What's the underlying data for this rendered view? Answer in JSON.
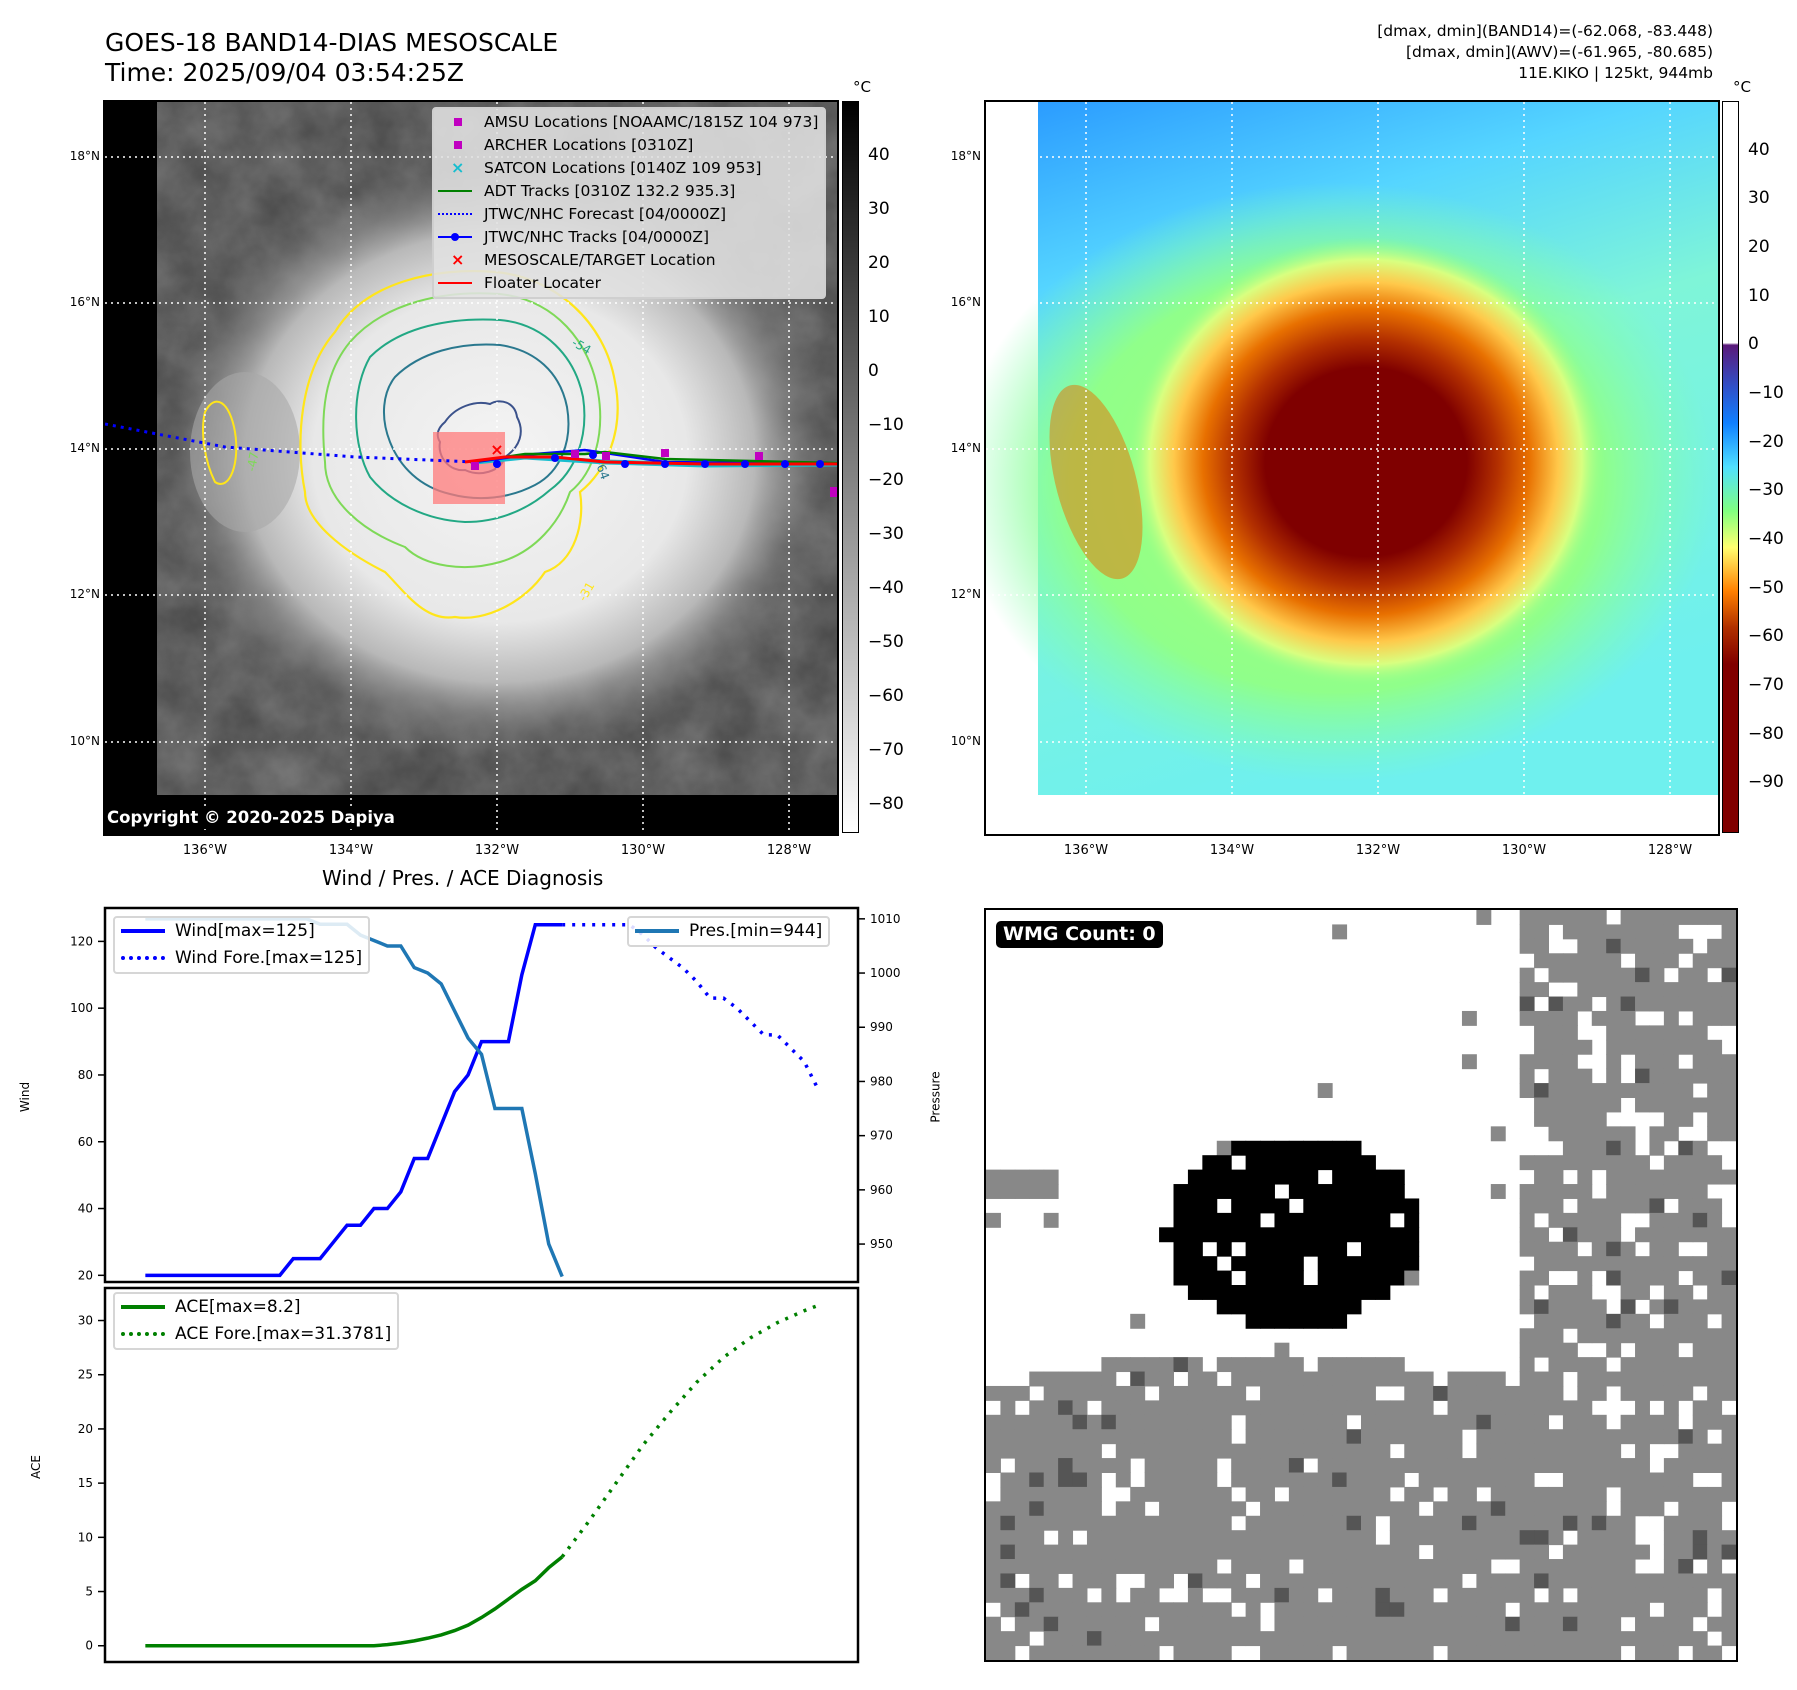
{
  "header": {
    "title": "GOES-18 BAND14-DIAS MESOSCALE",
    "time": "Time: 2025/09/04 03:54:25Z",
    "dmax_band14": "[dmax, dmin](BAND14)=(-62.068, -83.448)",
    "dmax_awv": "[dmax, dmin](AWV)=(-61.965, -80.685)",
    "storm": "11E.KIKO | 125kt, 944mb"
  },
  "maps": {
    "lat_labels": [
      "18°N",
      "16°N",
      "14°N",
      "12°N",
      "10°N"
    ],
    "lon_labels": [
      "136°W",
      "134°W",
      "132°W",
      "130°W",
      "128°W"
    ],
    "copyright": "Copyright © 2020-2025 Dapiya",
    "contour_labels": [
      "-54",
      "-64",
      "-31",
      "-47"
    ],
    "legend": [
      {
        "label": "AMSU Locations [NOAAMC/1815Z 104 973]",
        "symbol": "square",
        "color": "#c000c0"
      },
      {
        "label": "ARCHER Locations [0310Z]",
        "symbol": "square",
        "color": "#c000c0"
      },
      {
        "label": "SATCON Locations [0140Z 109 953]",
        "symbol": "x",
        "color": "#17becf"
      },
      {
        "label": "ADT Tracks [0310Z 132.2 935.3]",
        "symbol": "line",
        "color": "#008000"
      },
      {
        "label": "JTWC/NHC Forecast [04/0000Z]",
        "symbol": "dotted",
        "color": "#0000ff"
      },
      {
        "label": "JTWC/NHC Tracks [04/0000Z]",
        "symbol": "line-dot",
        "color": "#0000ff"
      },
      {
        "label": "MESOSCALE/TARGET Location",
        "symbol": "x",
        "color": "#ff0000"
      },
      {
        "label": "Floater Locater",
        "symbol": "line",
        "color": "#ff0000"
      }
    ],
    "gray_colorbar": {
      "unit": "°C",
      "ticks": [
        "40",
        "30",
        "20",
        "10",
        "0",
        "−10",
        "−20",
        "−30",
        "−40",
        "−50",
        "−60",
        "−70",
        "−80"
      ],
      "range": [
        -85,
        50
      ]
    },
    "color_colorbar": {
      "unit": "°C",
      "ticks": [
        "40",
        "30",
        "20",
        "10",
        "0",
        "−10",
        "−20",
        "−30",
        "−40",
        "−50",
        "−60",
        "−70",
        "−80",
        "−90"
      ],
      "range": [
        -100,
        50
      ]
    }
  },
  "wmg": {
    "label": "WMG Count: 0"
  },
  "chart_data": [
    {
      "type": "line",
      "title": "Wind / Pres. / ACE Diagnosis",
      "ylabel": "Wind",
      "ylabel_right": "Pressure",
      "ylim": [
        18,
        130
      ],
      "ylim_right": [
        943,
        1012
      ],
      "yticks": [
        "120",
        "100",
        "80",
        "60",
        "40",
        "20"
      ],
      "yticks_right": [
        "1010",
        "1000",
        "990",
        "980",
        "970",
        "960",
        "950"
      ],
      "x": [
        0,
        1,
        2,
        3,
        4,
        5,
        6,
        7,
        8,
        9,
        10,
        11,
        12,
        13,
        14,
        15,
        16,
        17,
        18,
        19,
        20,
        21,
        22,
        23,
        24,
        25,
        26,
        27,
        28,
        29,
        30,
        31,
        32,
        33,
        34,
        35,
        36,
        37,
        38,
        39,
        40
      ],
      "series": [
        {
          "name": "Wind[max=125]",
          "color": "#0000ff",
          "style": "solid",
          "x": [
            0,
            10,
            11,
            12,
            13,
            14,
            15,
            16,
            17,
            18,
            19,
            20,
            21,
            22,
            23,
            24,
            25,
            26,
            27,
            28,
            29,
            30,
            31
          ],
          "values": [
            20,
            20,
            25,
            25,
            25,
            30,
            35,
            35,
            40,
            40,
            45,
            55,
            55,
            65,
            75,
            80,
            90,
            90,
            90,
            110,
            125,
            125,
            125
          ]
        },
        {
          "name": "Wind Fore.[max=125]",
          "color": "#0000ff",
          "style": "dotted",
          "x": [
            31,
            33,
            35,
            36,
            37,
            38,
            39,
            40,
            41,
            42,
            43,
            44,
            45,
            46,
            47,
            48,
            49,
            50
          ],
          "values": [
            125,
            125,
            125,
            125,
            122,
            118,
            115,
            112,
            108,
            103,
            103,
            100,
            96,
            92,
            92,
            88,
            84,
            76
          ]
        },
        {
          "name": "Pres.[min=944]",
          "color": "#1f77b4",
          "style": "solid",
          "axis": "right",
          "x": [
            0,
            12,
            13,
            14,
            15,
            16,
            17,
            18,
            19,
            20,
            21,
            22,
            23,
            24,
            25,
            26,
            27,
            28,
            29,
            30,
            31
          ],
          "values": [
            1010,
            1010,
            1009,
            1009,
            1009,
            1007,
            1006,
            1005,
            1005,
            1001,
            1000,
            998,
            993,
            988,
            985,
            975,
            975,
            975,
            963,
            950,
            944
          ]
        }
      ]
    },
    {
      "type": "line",
      "ylabel": "ACE",
      "ylim": [
        -1.5,
        33
      ],
      "yticks": [
        "30",
        "25",
        "20",
        "15",
        "10",
        "5",
        "0"
      ],
      "series": [
        {
          "name": "ACE[max=8.2]",
          "color": "#008000",
          "style": "solid",
          "x": [
            0,
            17,
            18,
            19,
            20,
            21,
            22,
            23,
            24,
            25,
            26,
            27,
            28,
            29,
            30,
            31
          ],
          "values": [
            0,
            0,
            0.1,
            0.25,
            0.45,
            0.7,
            1.0,
            1.4,
            1.9,
            2.6,
            3.4,
            4.3,
            5.2,
            6.0,
            7.2,
            8.2
          ]
        },
        {
          "name": "ACE Fore.[max=31.3781]",
          "color": "#008000",
          "style": "dotted",
          "x": [
            31,
            33,
            35,
            37,
            39,
            41,
            43,
            45,
            47,
            49,
            50
          ],
          "values": [
            8.2,
            11.5,
            15.0,
            18.5,
            21.5,
            24.3,
            26.6,
            28.4,
            29.8,
            30.9,
            31.3781
          ]
        }
      ]
    }
  ]
}
